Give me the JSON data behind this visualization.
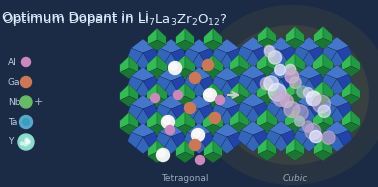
{
  "background_color": "#1c2b45",
  "title_parts": [
    "Optimum Dopant in Li",
    "7",
    "La",
    "3",
    "Zr",
    "2",
    "O",
    "12",
    "?"
  ],
  "title_color": "#ddeeff",
  "title_fontsize": 9.5,
  "legend_items": [
    {
      "label": "Al",
      "color": "#e09090",
      "size": 0.055
    },
    {
      "label": "Ga",
      "color": "#cc7755",
      "size": 0.065
    },
    {
      "label": "Nb",
      "color": "#66bb66",
      "size": 0.075
    },
    {
      "label": "Ta",
      "color": "#55aacc",
      "size": 0.08
    },
    {
      "label": "Y",
      "color": "#88ddcc",
      "size": 0.095
    }
  ],
  "plus_sign": "+",
  "tetragonal_label": "Tetragonal",
  "cubic_label": "Cubic",
  "arrow_color": "#cccccc",
  "glow_color": "#ccaa30",
  "blue_face1": "#3366bb",
  "blue_face2": "#2244aa",
  "blue_face3": "#4477cc",
  "blue_edge": "#112244",
  "green_face1": "#229944",
  "green_face2": "#33bb55",
  "green_face3": "#1a7733",
  "green_edge": "#114422",
  "atom_white": "#f0f0f0",
  "atom_orange": "#cc7755",
  "atom_pink": "#cc88bb",
  "atom_white2": "#e8e8ff"
}
